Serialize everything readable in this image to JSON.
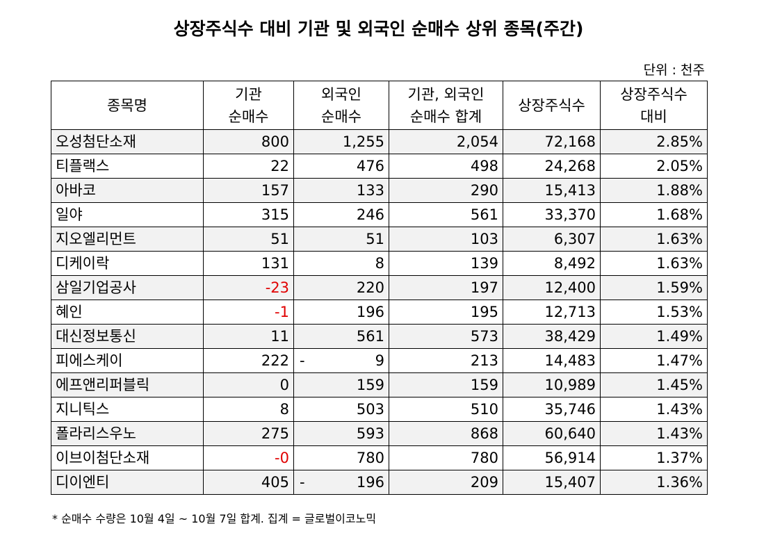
{
  "title": "상장주식수 대비 기관 및 외국인 순매수 상위 종목(주간)",
  "unit": "단위 : 천주",
  "headers": {
    "name": "종목명",
    "inst": [
      "기관",
      "순매수"
    ],
    "foreign": [
      "외국인",
      "순매수"
    ],
    "sum": [
      "기관, 외국인",
      "순매수 합계"
    ],
    "shares": "상장주식수",
    "ratio": [
      "상장주식수",
      "대비"
    ]
  },
  "rows": [
    {
      "name": "오성첨단소재",
      "inst": "800",
      "foreign": "1,255",
      "sum": "2,054",
      "shares": "72,168",
      "ratio": "2.85%"
    },
    {
      "name": "티플랙스",
      "inst": "22",
      "foreign": "476",
      "sum": "498",
      "shares": "24,268",
      "ratio": "2.05%"
    },
    {
      "name": "아바코",
      "inst": "157",
      "foreign": "133",
      "sum": "290",
      "shares": "15,413",
      "ratio": "1.88%"
    },
    {
      "name": "일야",
      "inst": "315",
      "foreign": "246",
      "sum": "561",
      "shares": "33,370",
      "ratio": "1.68%"
    },
    {
      "name": "지오엘리먼트",
      "inst": "51",
      "foreign": "51",
      "sum": "103",
      "shares": "6,307",
      "ratio": "1.63%"
    },
    {
      "name": "디케이락",
      "inst": "131",
      "foreign": "8",
      "sum": "139",
      "shares": "8,492",
      "ratio": "1.63%"
    },
    {
      "name": "삼일기업공사",
      "inst": "-23",
      "inst_neg": true,
      "foreign": "220",
      "sum": "197",
      "shares": "12,400",
      "ratio": "1.59%"
    },
    {
      "name": "혜인",
      "inst": "-1",
      "inst_neg": true,
      "foreign": "196",
      "sum": "195",
      "shares": "12,713",
      "ratio": "1.53%"
    },
    {
      "name": "대신정보통신",
      "inst": "11",
      "foreign": "561",
      "sum": "573",
      "shares": "38,429",
      "ratio": "1.49%"
    },
    {
      "name": "피에스케이",
      "inst": "222",
      "foreign": "9",
      "foreign_dash": "-",
      "sum": "213",
      "shares": "14,483",
      "ratio": "1.47%"
    },
    {
      "name": "에프앤리퍼블릭",
      "inst": "0",
      "foreign": "159",
      "sum": "159",
      "shares": "10,989",
      "ratio": "1.45%"
    },
    {
      "name": "지니틱스",
      "inst": "8",
      "foreign": "503",
      "sum": "510",
      "shares": "35,746",
      "ratio": "1.43%"
    },
    {
      "name": "폴라리스우노",
      "inst": "275",
      "foreign": "593",
      "sum": "868",
      "shares": "60,640",
      "ratio": "1.43%"
    },
    {
      "name": "이브이첨단소재",
      "inst": "-0",
      "inst_neg": true,
      "foreign": "780",
      "sum": "780",
      "shares": "56,914",
      "ratio": "1.37%"
    },
    {
      "name": "디이엔티",
      "inst": "405",
      "foreign": "196",
      "foreign_dash": "-",
      "sum": "209",
      "shares": "15,407",
      "ratio": "1.36%"
    }
  ],
  "note": "* 순매수 수량은 10월 4일 ~ 10월 7일 합계.  집계 = 글로벌이코노믹",
  "colors": {
    "negative": "#e00000",
    "stripe": "#f2f2f2"
  }
}
